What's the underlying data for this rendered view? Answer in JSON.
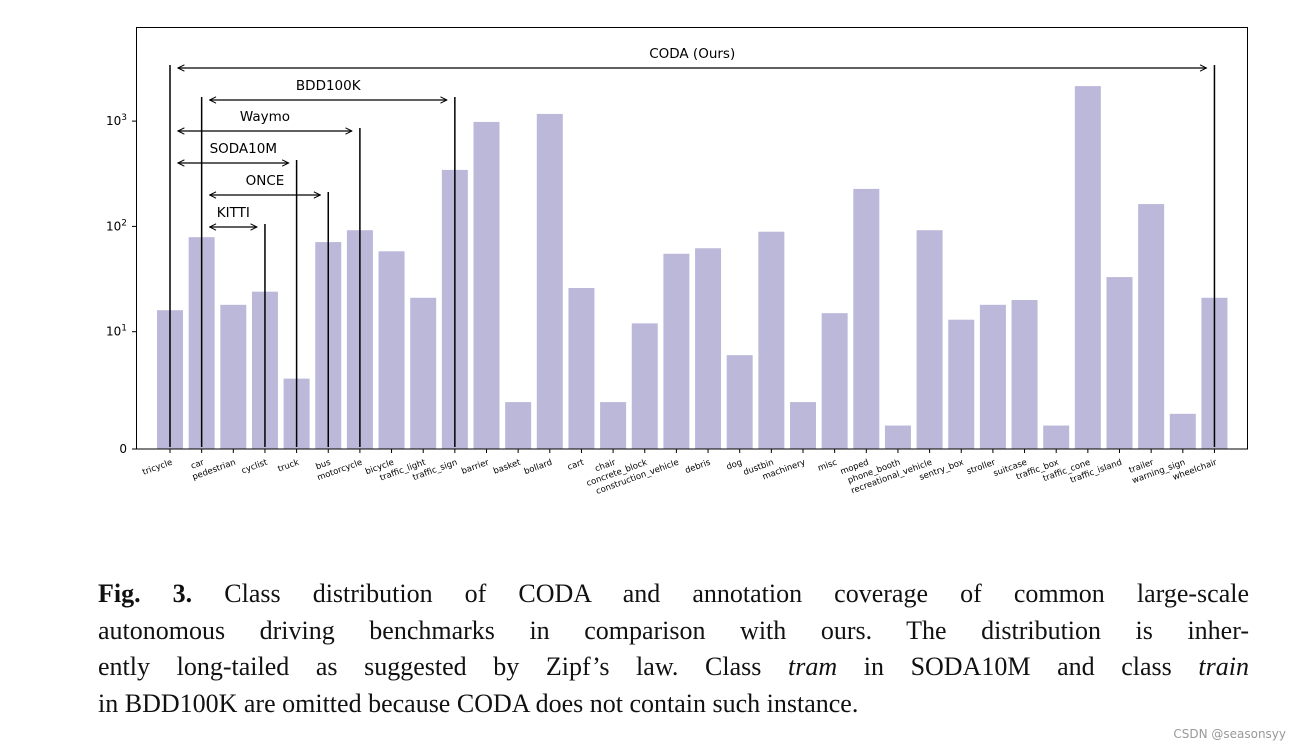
{
  "chart_data": {
    "type": "bar",
    "title": "",
    "xlabel": "",
    "ylabel": "",
    "yscale": "symlog",
    "linthresh": 10,
    "ylim": [
      0,
      3500
    ],
    "y_ticks": [
      {
        "value": 0,
        "label": "0"
      },
      {
        "value": 10,
        "base": "10",
        "exp": "1"
      },
      {
        "value": 100,
        "base": "10",
        "exp": "2"
      },
      {
        "value": 1000,
        "base": "10",
        "exp": "3"
      }
    ],
    "bar_color": "#bcb8da",
    "grid": false,
    "categories": [
      "tricycle",
      "car",
      "pedestrian",
      "cyclist",
      "truck",
      "bus",
      "motorcycle",
      "bicycle",
      "traffic_light",
      "traffic_sign",
      "barrier",
      "basket",
      "bollard",
      "cart",
      "chair",
      "concrete_block",
      "construction_vehicle",
      "debris",
      "dog",
      "dustbin",
      "machinery",
      "misc",
      "moped",
      "phone_booth",
      "recreational_vehicle",
      "sentry_box",
      "stroller",
      "suitcase",
      "traffic_box",
      "traffic_cone",
      "traffic_island",
      "trailer",
      "warning_sign",
      "wheelchair"
    ],
    "values": [
      16,
      79,
      18,
      24,
      6,
      71,
      92,
      58,
      21,
      344,
      982,
      4,
      1170,
      26,
      4,
      12,
      55,
      62,
      8,
      89,
      4,
      15,
      227,
      2,
      92,
      13,
      18,
      20,
      2,
      2150,
      33,
      163,
      3,
      21
    ],
    "annotations": [
      {
        "label": "CODA (Ours)",
        "from": "tricycle",
        "to": "wheelchair"
      },
      {
        "label": "BDD100K",
        "from": "car",
        "to": "traffic_sign"
      },
      {
        "label": "Waymo",
        "from": "tricycle",
        "to": "motorcycle"
      },
      {
        "label": "SODA10M",
        "from": "tricycle",
        "to": "truck"
      },
      {
        "label": "ONCE",
        "from": "car",
        "to": "bus"
      },
      {
        "label": "KITTI",
        "from": "car",
        "to": "cyclist"
      }
    ]
  },
  "caption": {
    "label": "Fig. 3.",
    "line1": " Class distribution of CODA and annotation coverage of common large-scale",
    "line2": "autonomous driving benchmarks in comparison with ours. The distribution is inher-",
    "line3a": "ently long-tailed as suggested by Zipf’s law. Class ",
    "line3b": "tram",
    "line3c": " in SODA10M and class ",
    "line3d": "train",
    "line4": "in BDD100K are omitted because CODA does not contain such instance."
  },
  "watermark": "CSDN @seasonsyy"
}
